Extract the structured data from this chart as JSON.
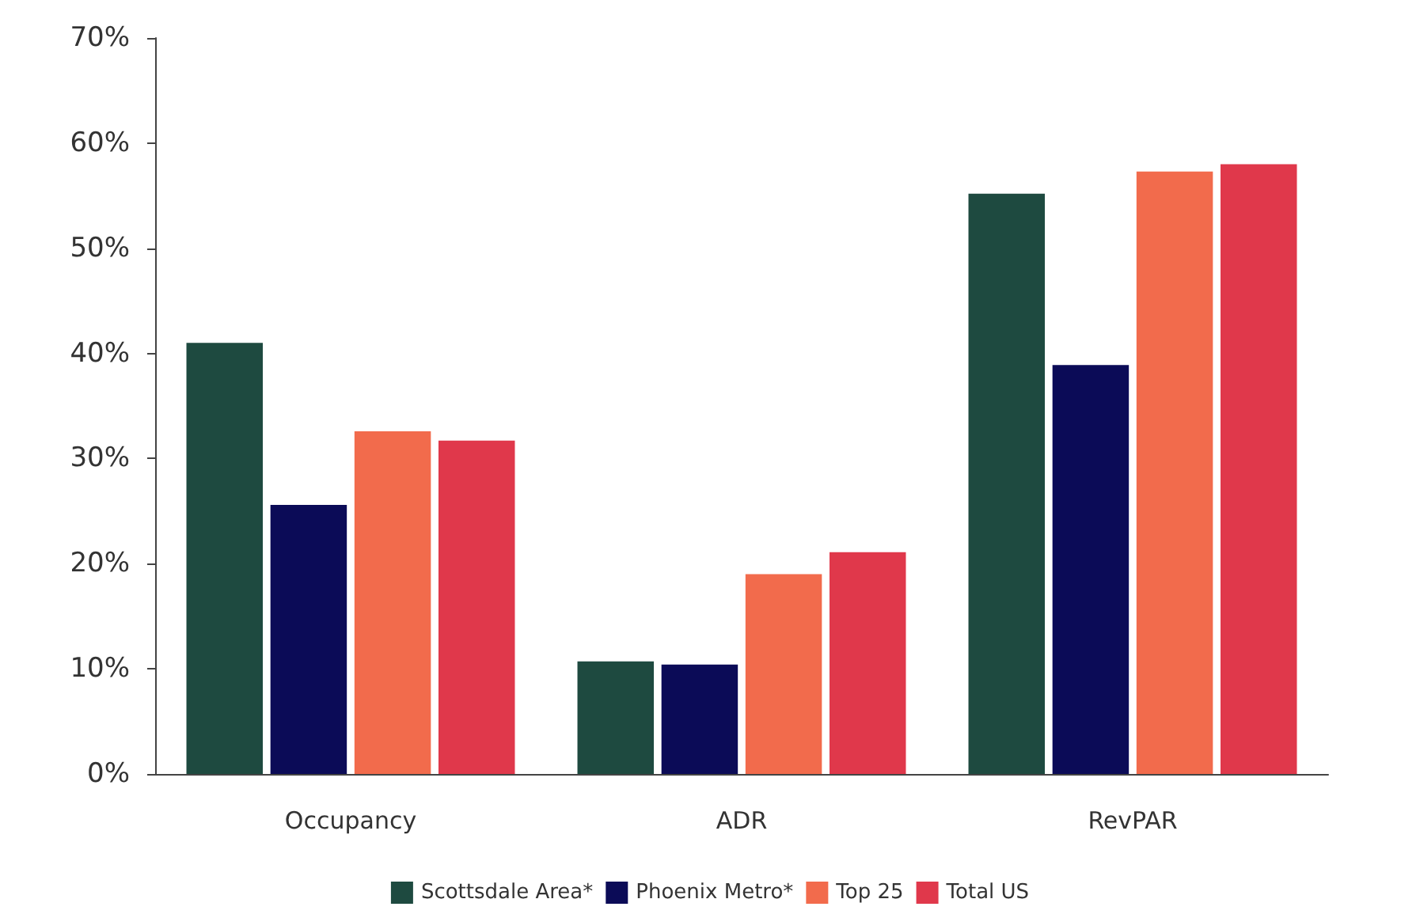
{
  "chart_data": {
    "type": "bar",
    "categories": [
      "Occupancy",
      "ADR",
      "RevPAR"
    ],
    "series": [
      {
        "name": "Scottsdale Area*",
        "color": "#1e4a40",
        "values": [
          41,
          10.7,
          55.2
        ]
      },
      {
        "name": "Phoenix Metro*",
        "color": "#0b0b57",
        "values": [
          25.6,
          10.4,
          38.9
        ]
      },
      {
        "name": "Top 25",
        "color": "#f26b4c",
        "values": [
          32.6,
          19,
          57.3
        ]
      },
      {
        "name": "Total US",
        "color": "#e0384b",
        "values": [
          31.7,
          21.1,
          58
        ]
      }
    ],
    "ylim": [
      0,
      70
    ],
    "yticks": [
      {
        "value": 0,
        "label": "0%"
      },
      {
        "value": 10,
        "label": "10%"
      },
      {
        "value": 20,
        "label": "20%"
      },
      {
        "value": 30,
        "label": "30%"
      },
      {
        "value": 40,
        "label": "40%"
      },
      {
        "value": 50,
        "label": "50%"
      },
      {
        "value": 60,
        "label": "60%"
      },
      {
        "value": 70,
        "label": "70%"
      }
    ],
    "grid": false,
    "legend": "bottom"
  }
}
